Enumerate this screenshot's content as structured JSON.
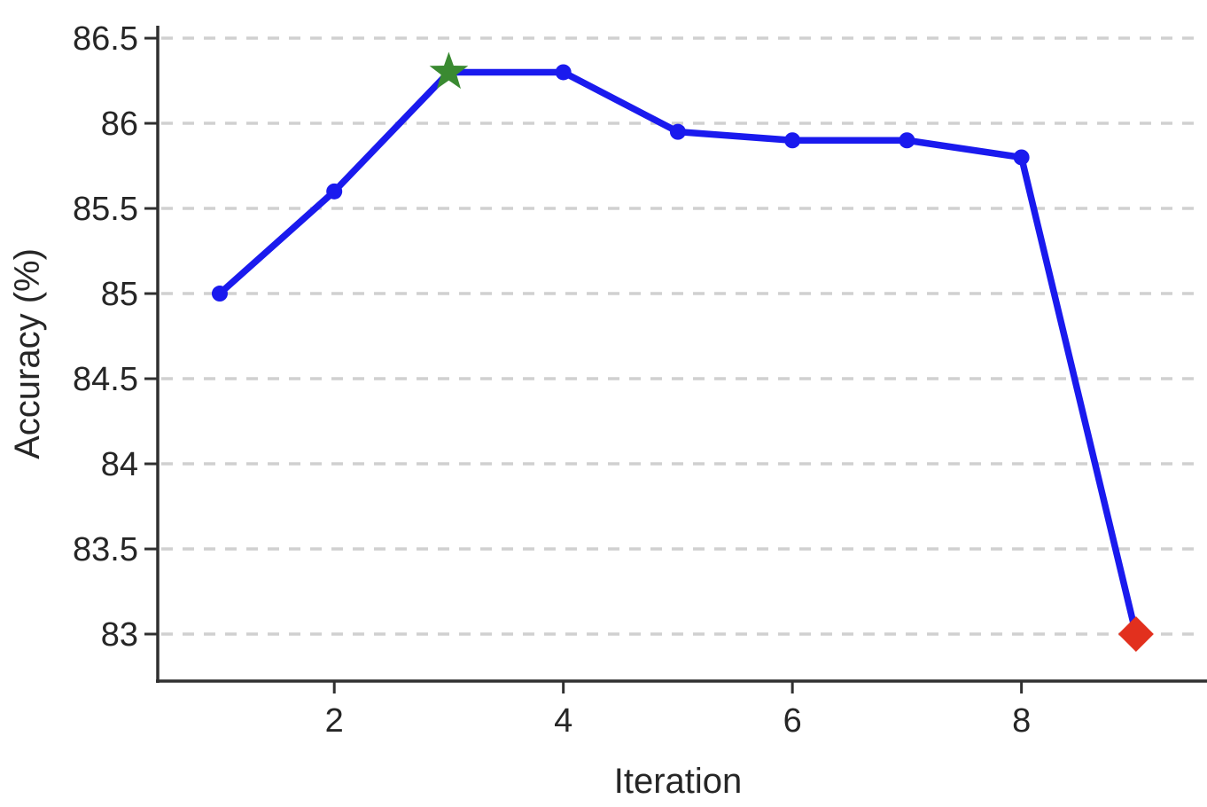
{
  "chart_data": {
    "type": "line",
    "title": "",
    "xlabel": "Iteration",
    "ylabel": "Accuracy (%)",
    "x": [
      1,
      2,
      3,
      4,
      5,
      6,
      7,
      8,
      9
    ],
    "series": [
      {
        "name": "accuracy",
        "values": [
          85.0,
          85.6,
          86.3,
          86.3,
          85.95,
          85.9,
          85.9,
          85.8,
          83.0
        ],
        "color": "#1a1aee",
        "marker": "circle"
      }
    ],
    "highlight_points": [
      {
        "x": 3,
        "y": 86.3,
        "marker": "star",
        "color": "#3a8a31",
        "meaning": "best-accuracy"
      },
      {
        "x": 9,
        "y": 83.0,
        "marker": "diamond",
        "color": "#e2301e",
        "meaning": "final-drop"
      }
    ],
    "xticks": [
      "2",
      "4",
      "6",
      "8"
    ],
    "xtick_values": [
      2,
      4,
      6,
      8
    ],
    "yticks": [
      "83",
      "83.5",
      "84",
      "84.5",
      "85",
      "85.5",
      "86",
      "86.5"
    ],
    "ytick_values": [
      83,
      83.5,
      84,
      84.5,
      85,
      85.5,
      86,
      86.5
    ],
    "xlim": [
      0.4586,
      9.62
    ],
    "ylim": [
      82.724,
      86.568
    ],
    "grid": "horizontal-dashed",
    "legend": "none",
    "colors": {
      "line": "#1a1aee",
      "star": "#3a8a31",
      "diamond": "#e2301e",
      "grid": "#d0d0d0",
      "axis": "#303030",
      "text": "#262626"
    }
  }
}
